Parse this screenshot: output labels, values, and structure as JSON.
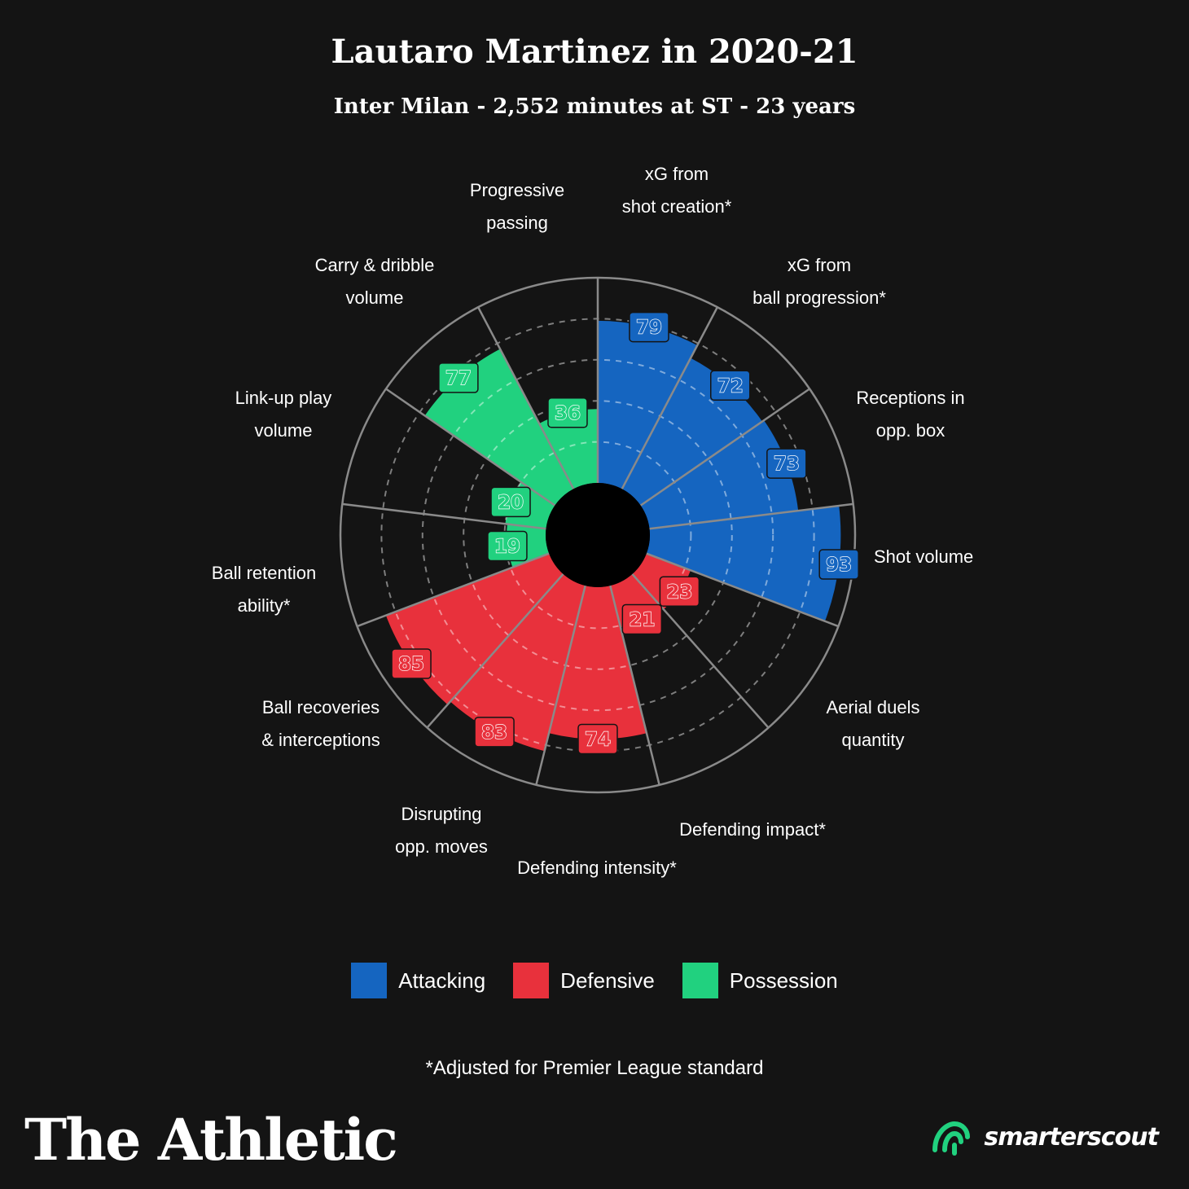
{
  "title": "Lautaro Martinez in 2020-21",
  "subtitle": "Inter Milan - 2,552 minutes at ST - 23 years",
  "chart_data": {
    "type": "polar-bar",
    "range": [
      0,
      100
    ],
    "grid": true,
    "categories": [
      {
        "label": [
          "xG from",
          "shot creation*"
        ],
        "value": 79,
        "group": "Attacking"
      },
      {
        "label": [
          "xG from",
          "ball progression*"
        ],
        "value": 72,
        "group": "Attacking"
      },
      {
        "label": [
          "Receptions in",
          "opp. box"
        ],
        "value": 73,
        "group": "Attacking"
      },
      {
        "label": [
          "Shot volume"
        ],
        "value": 93,
        "group": "Attacking"
      },
      {
        "label": [
          "Aerial duels",
          "quantity"
        ],
        "value": 23,
        "group": "Defensive"
      },
      {
        "label": [
          "Defending impact*"
        ],
        "value": 21,
        "group": "Defensive"
      },
      {
        "label": [
          "Defending intensity*"
        ],
        "value": 74,
        "group": "Defensive"
      },
      {
        "label": [
          "Disrupting",
          "opp. moves"
        ],
        "value": 83,
        "group": "Defensive"
      },
      {
        "label": [
          "Ball recoveries",
          "& interceptions"
        ],
        "value": 85,
        "group": "Defensive"
      },
      {
        "label": [
          "Ball retention",
          "ability*"
        ],
        "value": 19,
        "group": "Possession"
      },
      {
        "label": [
          "Link-up play",
          "volume"
        ],
        "value": 20,
        "group": "Possession"
      },
      {
        "label": [
          "Carry & dribble",
          "volume"
        ],
        "value": 77,
        "group": "Possession"
      },
      {
        "label": [
          "Progressive",
          "passing"
        ],
        "value": 36,
        "group": "Possession"
      }
    ],
    "legend": [
      {
        "name": "Attacking",
        "color": "#1565C0"
      },
      {
        "name": "Defensive",
        "color": "#E8313C"
      },
      {
        "name": "Possession",
        "color": "#21D17F"
      }
    ],
    "legend_position": "bottom"
  },
  "footnote": "*Adjusted for Premier League standard",
  "brand": {
    "left": "The Athletic",
    "right": "smarterscout",
    "right_icon": "smarterscout-logo-icon"
  }
}
